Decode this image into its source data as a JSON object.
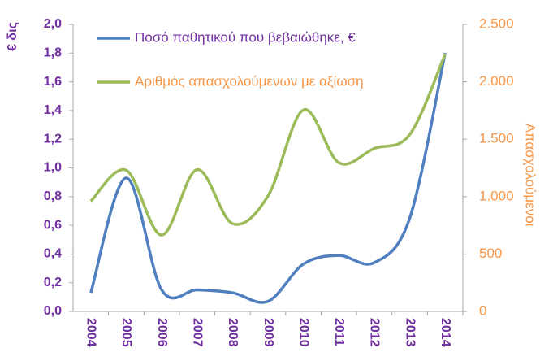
{
  "chart_data": {
    "type": "line",
    "y_label": "€ δις",
    "y2_label": "Απασχολούμενοι",
    "categories": [
      "2004",
      "2005",
      "2006",
      "2007",
      "2008",
      "2009",
      "2010",
      "2011",
      "2012",
      "2013",
      "2014"
    ],
    "series": [
      {
        "name": "Ποσό παθητικού που βεβαιώθηκε, €",
        "color": "#4f7fbf",
        "values": [
          0.13,
          0.93,
          0.15,
          0.15,
          0.13,
          0.07,
          0.33,
          0.39,
          0.34,
          0.65,
          1.8
        ]
      },
      {
        "name": "Αριθμός απασχολούμενων με αξίωση",
        "color": "#9bbb59",
        "axis": "y2",
        "values": [
          960,
          1230,
          665,
          1235,
          765,
          1005,
          1755,
          1295,
          1420,
          1540,
          2240
        ]
      }
    ],
    "ylim": [
      0,
      2
    ],
    "yticks": [
      {
        "value": 0,
        "label": "0,0"
      },
      {
        "value": 0.2,
        "label": "0,2"
      },
      {
        "value": 0.4,
        "label": "0,4"
      },
      {
        "value": 0.6,
        "label": "0,6"
      },
      {
        "value": 0.8,
        "label": "0,8"
      },
      {
        "value": 1.0,
        "label": "1,0"
      },
      {
        "value": 1.2,
        "label": "1,2"
      },
      {
        "value": 1.4,
        "label": "1,4"
      },
      {
        "value": 1.6,
        "label": "1,6"
      },
      {
        "value": 1.8,
        "label": "1,8"
      },
      {
        "value": 2.0,
        "label": "2,0"
      }
    ],
    "y2lim": [
      0,
      2500
    ],
    "y2ticks": [
      0,
      500,
      {
        "value": 1000,
        "label": "1.000"
      },
      {
        "value": 1500,
        "label": "1.500"
      },
      {
        "value": 2000,
        "label": "2.000"
      },
      {
        "value": 2500,
        "label": "2.500"
      }
    ],
    "y_color": "#7030a0",
    "y2_color": "#f79646",
    "x_color": "#7030a0",
    "legend_position": "upper left"
  }
}
